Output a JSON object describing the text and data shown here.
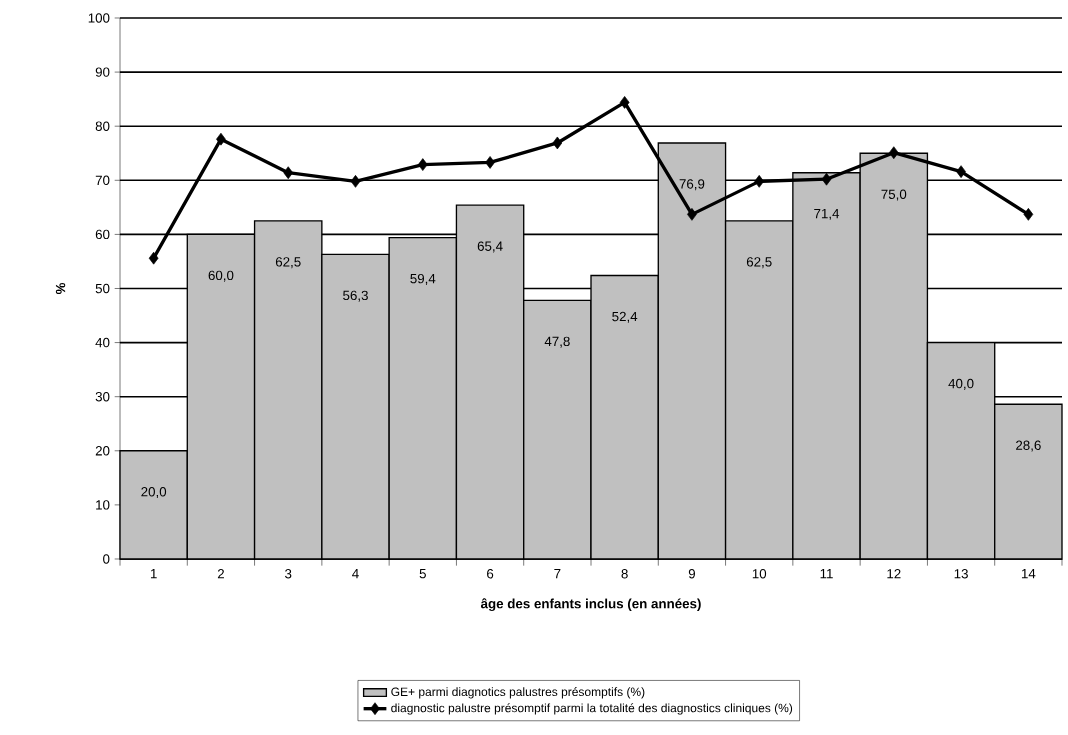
{
  "chart_data": {
    "type": "bar",
    "xlabel": "âge des enfants inclus (en années)",
    "ylabel": "%",
    "categories": [
      "1",
      "2",
      "3",
      "4",
      "5",
      "6",
      "7",
      "8",
      "9",
      "10",
      "11",
      "12",
      "13",
      "14"
    ],
    "series": [
      {
        "name": "GE+ parmi diagnotics palustres présomptifs (%)",
        "type": "bar",
        "color": "#c0c0c0",
        "values": [
          20.0,
          60.0,
          62.5,
          56.3,
          59.4,
          65.4,
          47.8,
          52.4,
          76.9,
          62.5,
          71.4,
          75.0,
          40.0,
          28.6
        ],
        "value_labels": [
          "20,0",
          "60,0",
          "62,5",
          "56,3",
          "59,4",
          "65,4",
          "47,8",
          "52,4",
          "76,9",
          "62,5",
          "71,4",
          "75,0",
          "40,0",
          "28,6"
        ]
      },
      {
        "name": "diagnostic palustre présomptif parmi la totalité des diagnostics cliniques (%)",
        "type": "line",
        "color": "#000000",
        "marker": "diamond",
        "values": [
          55.6,
          77.6,
          71.4,
          69.8,
          72.9,
          73.3,
          76.9,
          84.4,
          63.7,
          69.8,
          70.2,
          75.1,
          71.6,
          63.7
        ]
      }
    ],
    "ylim": [
      0,
      100
    ],
    "yticks": [
      0,
      10,
      20,
      30,
      40,
      50,
      60,
      70,
      80,
      90,
      100
    ],
    "grid": "y",
    "legend": "bottom"
  }
}
